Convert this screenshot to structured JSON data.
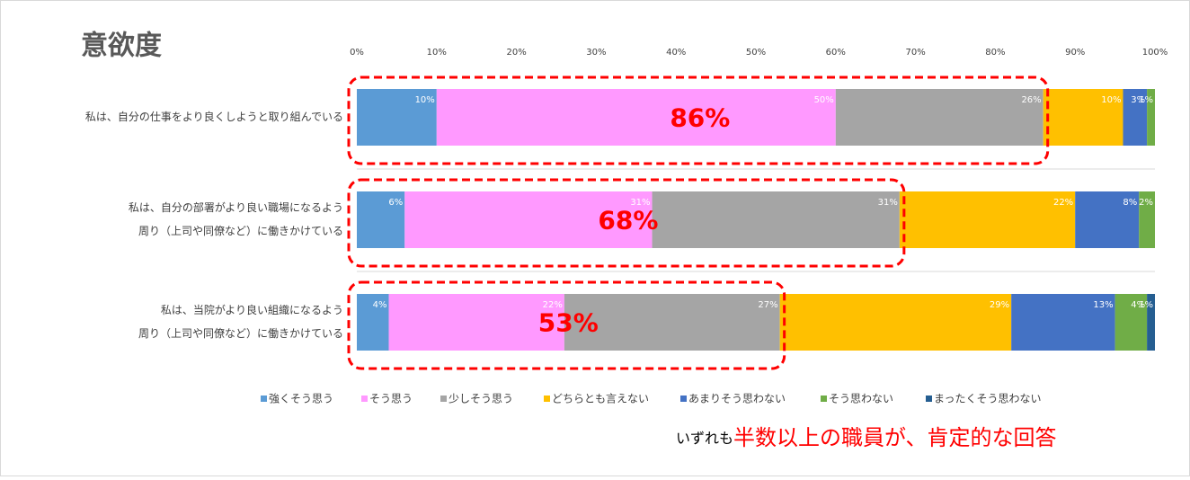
{
  "chart_data": {
    "type": "bar",
    "orientation": "horizontal",
    "stacked": true,
    "title": "意欲度",
    "categories": [
      [
        "私は、自分の仕事をより良くしようと取り組んでいる"
      ],
      [
        "私は、自分の部署がより良い職場になるよう",
        "周り（上司や同僚など）に働きかけている"
      ],
      [
        "私は、当院がより良い組織になるよう",
        "周り（上司や同僚など）に働きかけている"
      ]
    ],
    "series": [
      {
        "name": "強くそう思う",
        "color": "#5b9bd5",
        "values": [
          10,
          6,
          4
        ],
        "value_labels": [
          "10%",
          "6%",
          "4%"
        ]
      },
      {
        "name": "そう思う",
        "color": "#ff99ff",
        "values": [
          50,
          31,
          22
        ],
        "value_labels": [
          "50%",
          "31%",
          "22%"
        ]
      },
      {
        "name": "少しそう思う",
        "color": "#a5a5a5",
        "values": [
          26,
          31,
          27
        ],
        "value_labels": [
          "26%",
          "31%",
          "27%"
        ]
      },
      {
        "name": "どちらとも言えない",
        "color": "#ffc000",
        "values": [
          10,
          22,
          29
        ],
        "value_labels": [
          "10%",
          "22%",
          "29%"
        ]
      },
      {
        "name": "あまりそう思わない",
        "color": "#4472c4",
        "values": [
          3,
          8,
          13
        ],
        "value_labels": [
          "3%",
          "8%",
          "13%"
        ]
      },
      {
        "name": "そう思わない",
        "color": "#70ad47",
        "values": [
          1,
          2,
          4
        ],
        "value_labels": [
          "1%",
          "2%",
          "4%"
        ]
      },
      {
        "name": "まったくそう思わない",
        "color": "#255e91",
        "values": [
          0,
          0,
          1
        ],
        "value_labels": [
          null,
          null,
          "1%"
        ]
      }
    ],
    "xlim": [
      0,
      100
    ],
    "xticks": [
      {
        "value": 0,
        "label": "0%"
      },
      {
        "value": 10,
        "label": "10%"
      },
      {
        "value": 20,
        "label": "20%"
      },
      {
        "value": 30,
        "label": "30%"
      },
      {
        "value": 40,
        "label": "40%"
      },
      {
        "value": 50,
        "label": "50%"
      },
      {
        "value": 60,
        "label": "60%"
      },
      {
        "value": 70,
        "label": "70%"
      },
      {
        "value": 80,
        "label": "80%"
      },
      {
        "value": 90,
        "label": "90%"
      },
      {
        "value": 100,
        "label": "100%"
      }
    ],
    "annotations": [
      {
        "value": 86,
        "label": "86%"
      },
      {
        "value": 68,
        "label": "68%"
      },
      {
        "value": 53,
        "label": "53%"
      }
    ],
    "annotation_color": "#ff0000",
    "note": {
      "lead": "いずれも",
      "emphasis": "半数以上の職員が、肯定的な回答"
    },
    "legend": "bottom"
  }
}
